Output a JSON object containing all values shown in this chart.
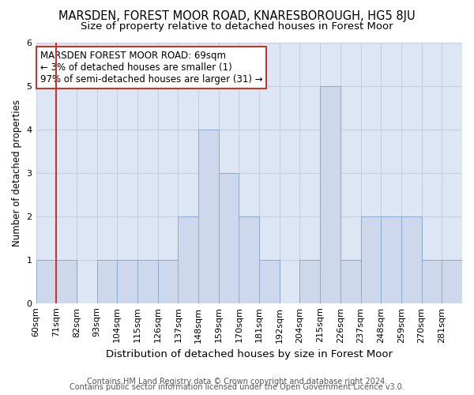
{
  "title": "MARSDEN, FOREST MOOR ROAD, KNARESBOROUGH, HG5 8JU",
  "subtitle": "Size of property relative to detached houses in Forest Moor",
  "xlabel": "Distribution of detached houses by size in Forest Moor",
  "ylabel": "Number of detached properties",
  "footer1": "Contains HM Land Registry data © Crown copyright and database right 2024.",
  "footer2": "Contains public sector information licensed under the Open Government Licence v3.0.",
  "bins": [
    "60sqm",
    "71sqm",
    "82sqm",
    "93sqm",
    "104sqm",
    "115sqm",
    "126sqm",
    "137sqm",
    "148sqm",
    "159sqm",
    "170sqm",
    "181sqm",
    "192sqm",
    "204sqm",
    "215sqm",
    "226sqm",
    "237sqm",
    "248sqm",
    "259sqm",
    "270sqm",
    "281sqm"
  ],
  "values": [
    1,
    1,
    0,
    1,
    1,
    1,
    1,
    2,
    4,
    3,
    2,
    1,
    0,
    1,
    5,
    1,
    2,
    2,
    2,
    1,
    1
  ],
  "bar_color": "#cdd8ed",
  "bar_edge_color": "#8aaad4",
  "highlight_edge_color": "#c0392b",
  "annotation_box_text": "MARSDEN FOREST MOOR ROAD: 69sqm\n← 3% of detached houses are smaller (1)\n97% of semi-detached houses are larger (31) →",
  "annotation_box_color": "white",
  "annotation_box_edge_color": "#c0392b",
  "ylim": [
    0,
    6
  ],
  "yticks": [
    0,
    1,
    2,
    3,
    4,
    5,
    6
  ],
  "grid_color": "#c8d0e0",
  "bg_color": "#dce6f5",
  "title_fontsize": 10.5,
  "subtitle_fontsize": 9.5,
  "xlabel_fontsize": 9.5,
  "ylabel_fontsize": 8.5,
  "tick_fontsize": 8,
  "annotation_fontsize": 8.5,
  "footer_fontsize": 7
}
